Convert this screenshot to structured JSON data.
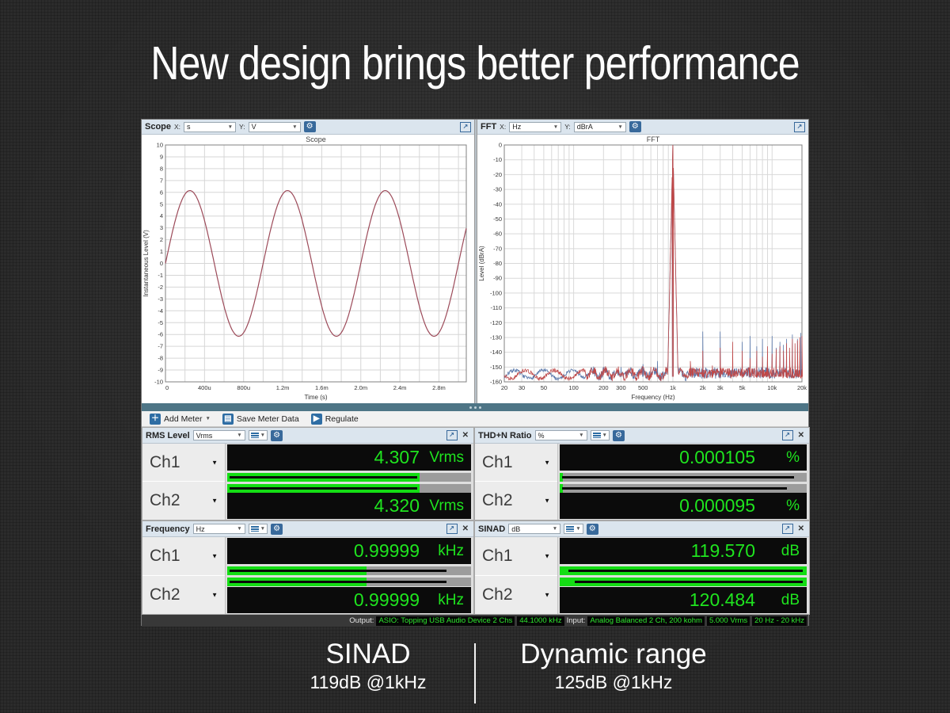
{
  "slide": {
    "title": "New design brings better performance",
    "metrics": [
      {
        "name": "SINAD",
        "value": "119dB @1kHz"
      },
      {
        "name": "Dynamic range",
        "value": "125dB @1kHz"
      }
    ]
  },
  "app": {
    "panels": [
      {
        "name": "Scope",
        "x_label": "X:",
        "x_unit": "s",
        "y_label": "Y:",
        "y_unit": "V"
      },
      {
        "name": "FFT",
        "x_label": "X:",
        "x_unit": "Hz",
        "y_label": "Y:",
        "y_unit": "dBrA"
      }
    ],
    "toolbar": {
      "add_meter": "Add Meter",
      "save_meter_data": "Save Meter Data",
      "regulate": "Regulate"
    },
    "meters": [
      {
        "title": "RMS Level",
        "unit": "Vrms",
        "channels": [
          {
            "label": "Ch1",
            "value": "4.307",
            "unit": "Vrms",
            "bar": 0.79,
            "stripe_start": 0.01,
            "stripe": 0.78
          },
          {
            "label": "Ch2",
            "value": "4.320",
            "unit": "Vrms",
            "bar": 0.79,
            "stripe_start": 0.01,
            "stripe": 0.78
          }
        ]
      },
      {
        "title": "THD+N Ratio",
        "unit": "%",
        "channels": [
          {
            "label": "Ch1",
            "value": "0.000105",
            "unit": "%",
            "bar": 0.013,
            "stripe_start": 0.01,
            "stripe": 0.95
          },
          {
            "label": "Ch2",
            "value": "0.000095",
            "unit": "%",
            "bar": 0.013,
            "stripe_start": 0.01,
            "stripe": 0.92
          }
        ]
      },
      {
        "title": "Frequency",
        "unit": "Hz",
        "channels": [
          {
            "label": "Ch1",
            "value": "0.99999",
            "unit": "kHz",
            "bar": 0.57,
            "stripe_start": 0.01,
            "stripe": 0.9
          },
          {
            "label": "Ch2",
            "value": "0.99999",
            "unit": "kHz",
            "bar": 0.57,
            "stripe_start": 0.01,
            "stripe": 0.9
          }
        ]
      },
      {
        "title": "SINAD",
        "unit": "dB",
        "channels": [
          {
            "label": "Ch1",
            "value": "119.570",
            "unit": "dB",
            "bar": 1.0,
            "stripe_start": 0.035,
            "stripe": 0.985
          },
          {
            "label": "Ch2",
            "value": "120.484",
            "unit": "dB",
            "bar": 1.0,
            "stripe_start": 0.06,
            "stripe": 0.985
          }
        ]
      }
    ],
    "status_bar": {
      "output_label": "Output:",
      "output_badges": [
        "ASIO: Topping USB Audio Device 2 Chs",
        "44.1000 kHz"
      ],
      "input_label": "Input:",
      "input_badges": [
        "Analog Balanced 2 Ch, 200 kohm",
        "5.000 Vrms",
        "20 Hz - 20 kHz"
      ]
    },
    "colors": {
      "value_green": "#1fe41f",
      "bar_green": "#14dd14",
      "splitter_teal": "#4e7586",
      "header_bg": "#dbe5ee",
      "accent_blue": "#2e6da4",
      "scope_trace": "#9c4a59",
      "fft_red": "#bf4848",
      "fft_blue": "#5b79ab"
    }
  },
  "chart_data": [
    {
      "type": "line",
      "title": "Scope",
      "xlabel": "Time (s)",
      "ylabel": "Instantaneous Level (V)",
      "xlim": [
        0,
        0.00308
      ],
      "ylim": [
        -10,
        10
      ],
      "y_tick_step": 1,
      "grid": true,
      "x_ticks": {
        "labels": [
          "0",
          "400u",
          "800u",
          "1.2m",
          "1.6m",
          "2.0m",
          "2.4m",
          "2.8m"
        ],
        "values": [
          0,
          0.0004,
          0.0008,
          0.0012,
          0.0016,
          0.002,
          0.0024,
          0.0028
        ]
      },
      "x_grid_step": 0.0002,
      "signal": {
        "kind": "sine",
        "amplitude_v": 6.15,
        "frequency_hz": 1000,
        "phase_deg": 0
      },
      "trace_color": "#9c4a59"
    },
    {
      "type": "line",
      "title": "FFT",
      "xlabel": "Frequency (Hz)",
      "ylabel": "Level (dBrA)",
      "x_scale": "log",
      "xlim": [
        20,
        20000
      ],
      "ylim": [
        -160,
        0
      ],
      "y_tick_step": 10,
      "grid": true,
      "x_ticks": {
        "labels": [
          "20",
          "30",
          "50",
          "100",
          "200",
          "300",
          "500",
          "1k",
          "2k",
          "3k",
          "5k",
          "10k",
          "20k"
        ],
        "values": [
          20,
          30,
          50,
          100,
          200,
          300,
          500,
          1000,
          2000,
          3000,
          5000,
          10000,
          20000
        ]
      },
      "noise_floor_db": -155,
      "main_tone": {
        "freq_hz": 1000,
        "db": 0
      },
      "series": [
        {
          "name": "Ch2",
          "color": "#5b79ab",
          "peaks": [
            [
              1000,
              0
            ],
            [
              300,
              -150
            ],
            [
              500,
              -148
            ],
            [
              700,
              -146
            ],
            [
              2000,
              -126
            ],
            [
              3000,
              -126
            ],
            [
              4000,
              -151
            ],
            [
              5000,
              -133
            ],
            [
              6000,
              -129
            ],
            [
              7000,
              -136
            ],
            [
              8000,
              -131
            ],
            [
              9000,
              -141
            ],
            [
              10000,
              -129
            ],
            [
              11000,
              -137
            ],
            [
              12000,
              -133
            ],
            [
              13000,
              -135
            ],
            [
              14000,
              -131
            ],
            [
              16000,
              -128
            ],
            [
              18000,
              -131
            ],
            [
              19500,
              -127
            ]
          ]
        },
        {
          "name": "Ch1",
          "color": "#bf4848",
          "peaks": [
            [
              1000,
              0
            ],
            [
              600,
              -150
            ],
            [
              1500,
              -146
            ],
            [
              2000,
              -139
            ],
            [
              2500,
              -149
            ],
            [
              3000,
              -137
            ],
            [
              4000,
              -133
            ],
            [
              5000,
              -139
            ],
            [
              6000,
              -144
            ],
            [
              7000,
              -139
            ],
            [
              8000,
              -143
            ],
            [
              9000,
              -136
            ],
            [
              10000,
              -141
            ],
            [
              11000,
              -138
            ],
            [
              12000,
              -136
            ],
            [
              13000,
              -139
            ],
            [
              14000,
              -134
            ],
            [
              15000,
              -137
            ],
            [
              16000,
              -131
            ],
            [
              17000,
              -134
            ],
            [
              18000,
              -132
            ],
            [
              19000,
              -130
            ],
            [
              20000,
              -129
            ]
          ]
        }
      ]
    }
  ]
}
